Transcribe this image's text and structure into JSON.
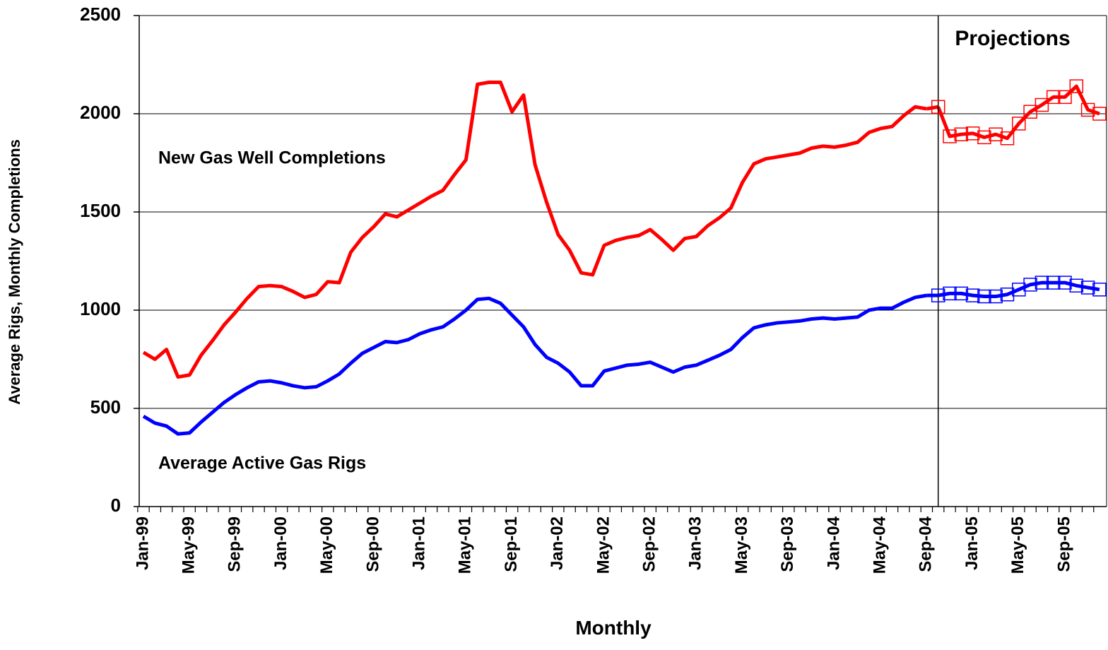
{
  "chart_data": {
    "type": "line",
    "y_label": "Average Rigs, Monthly Completions",
    "x_label": "Monthly",
    "projections_label": "Projections",
    "categories": [
      "Jan-99",
      null,
      null,
      null,
      "May-99",
      null,
      null,
      null,
      "Sep-99",
      null,
      null,
      null,
      "Jan-00",
      null,
      null,
      null,
      "May-00",
      null,
      null,
      null,
      "Sep-00",
      null,
      null,
      null,
      "Jan-01",
      null,
      null,
      null,
      "May-01",
      null,
      null,
      null,
      "Sep-01",
      null,
      null,
      null,
      "Jan-02",
      null,
      null,
      null,
      "May-02",
      null,
      null,
      null,
      "Sep-02",
      null,
      null,
      null,
      "Jan-03",
      null,
      null,
      null,
      "May-03",
      null,
      null,
      null,
      "Sep-03",
      null,
      null,
      null,
      "Jan-04",
      null,
      null,
      null,
      "May-04",
      null,
      null,
      null,
      "Sep-04",
      null,
      null,
      null,
      "Jan-05",
      null,
      null,
      null,
      "May-05",
      null,
      null,
      null,
      "Sep-05",
      null,
      null,
      null
    ],
    "ylim": [
      0,
      2500
    ],
    "yticks": [
      0,
      500,
      1000,
      1500,
      2000,
      2500
    ],
    "grid": true,
    "series": [
      {
        "name": "New Gas Well Completions",
        "color": "#ff0000",
        "values": [
          785,
          750,
          800,
          660,
          670,
          770,
          845,
          925,
          990,
          1060,
          1120,
          1125,
          1120,
          1095,
          1065,
          1080,
          1145,
          1140,
          1295,
          1370,
          1425,
          1490,
          1475,
          1510,
          1545,
          1580,
          1610,
          1690,
          1765,
          2150,
          2160,
          2160,
          2010,
          2095,
          1740,
          1550,
          1385,
          1305,
          1190,
          1180,
          1330,
          1355,
          1370,
          1380,
          1410,
          1360,
          1305,
          1365,
          1375,
          1430,
          1470,
          1520,
          1650,
          1745,
          1770,
          1780,
          1790,
          1800,
          1825,
          1835,
          1830,
          1840,
          1855,
          1905,
          1925,
          1935,
          1990,
          2035,
          2025,
          null,
          null,
          null,
          null,
          null,
          null,
          null,
          null,
          null,
          null,
          null,
          null,
          null,
          null,
          null
        ]
      },
      {
        "name": "Average Active Gas Rigs",
        "color": "#0000ff",
        "values": [
          460,
          425,
          410,
          370,
          375,
          430,
          480,
          530,
          570,
          605,
          635,
          640,
          630,
          615,
          605,
          610,
          640,
          675,
          730,
          780,
          810,
          840,
          835,
          850,
          880,
          900,
          915,
          955,
          1000,
          1055,
          1060,
          1035,
          975,
          915,
          825,
          760,
          730,
          685,
          615,
          615,
          690,
          705,
          720,
          725,
          735,
          710,
          685,
          710,
          720,
          745,
          770,
          800,
          860,
          910,
          925,
          935,
          940,
          945,
          955,
          960,
          955,
          960,
          965,
          1000,
          1010,
          1010,
          1040,
          1065,
          1075,
          null,
          null,
          null,
          null,
          null,
          null,
          null,
          null,
          null,
          null,
          null,
          null,
          null,
          null,
          null
        ]
      },
      {
        "color": "#ff0000",
        "marker": "square",
        "values": [
          null,
          null,
          null,
          null,
          null,
          null,
          null,
          null,
          null,
          null,
          null,
          null,
          null,
          null,
          null,
          null,
          null,
          null,
          null,
          null,
          null,
          null,
          null,
          null,
          null,
          null,
          null,
          null,
          null,
          null,
          null,
          null,
          null,
          null,
          null,
          null,
          null,
          null,
          null,
          null,
          null,
          null,
          null,
          null,
          null,
          null,
          null,
          null,
          null,
          null,
          null,
          null,
          null,
          null,
          null,
          null,
          null,
          null,
          null,
          null,
          null,
          null,
          null,
          null,
          null,
          null,
          null,
          null,
          null,
          2035,
          1885,
          1895,
          1900,
          1880,
          1895,
          1875,
          1950,
          2010,
          2045,
          2085,
          2085,
          2140,
          2020,
          2000
        ]
      },
      {
        "color": "#0000ff",
        "marker": "square",
        "values": [
          null,
          null,
          null,
          null,
          null,
          null,
          null,
          null,
          null,
          null,
          null,
          null,
          null,
          null,
          null,
          null,
          null,
          null,
          null,
          null,
          null,
          null,
          null,
          null,
          null,
          null,
          null,
          null,
          null,
          null,
          null,
          null,
          null,
          null,
          null,
          null,
          null,
          null,
          null,
          null,
          null,
          null,
          null,
          null,
          null,
          null,
          null,
          null,
          null,
          null,
          null,
          null,
          null,
          null,
          null,
          null,
          null,
          null,
          null,
          null,
          null,
          null,
          null,
          null,
          null,
          null,
          null,
          null,
          null,
          1075,
          1085,
          1085,
          1075,
          1070,
          1070,
          1080,
          1105,
          1130,
          1140,
          1140,
          1140,
          1125,
          1115,
          1105
        ]
      }
    ]
  }
}
